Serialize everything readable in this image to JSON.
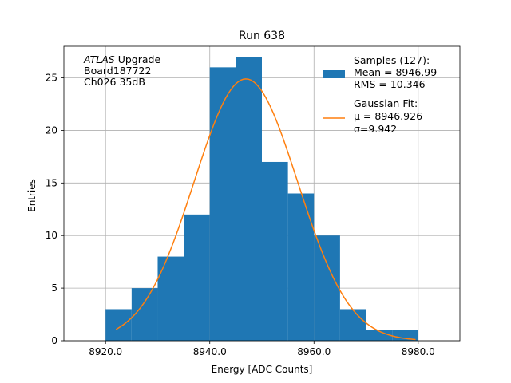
{
  "chart_data": {
    "type": "bar",
    "title": "Run 638",
    "xlabel": "Energy [ADC Counts]",
    "ylabel": "Entries",
    "xlim": [
      8912.0,
      8988.0
    ],
    "ylim": [
      0,
      28
    ],
    "x_ticks": [
      8920.0,
      8940.0,
      8960.0,
      8980.0
    ],
    "x_tick_labels": [
      "8920.0",
      "8940.0",
      "8960.0",
      "8980.0"
    ],
    "y_ticks": [
      0,
      5,
      10,
      15,
      20,
      25
    ],
    "y_tick_labels": [
      "0",
      "5",
      "10",
      "15",
      "20",
      "25"
    ],
    "grid": true,
    "histogram": {
      "bin_edges": [
        8920,
        8925,
        8930,
        8935,
        8940,
        8945,
        8950,
        8955,
        8960,
        8965,
        8970,
        8975,
        8980
      ],
      "counts": [
        3,
        5,
        8,
        12,
        26,
        27,
        17,
        14,
        10,
        3,
        1,
        1
      ],
      "color": "#1f77b4"
    },
    "gaussian_fit": {
      "mu": 8946.926,
      "sigma": 9.942,
      "amplitude": 24.9,
      "x_range": [
        8922.0,
        8979.5
      ],
      "color": "#ff7f0e"
    },
    "annotation_lines": [
      {
        "italic": "ATLAS",
        "rest": " Upgrade"
      },
      {
        "italic": "",
        "rest": " Board187722"
      },
      {
        "italic": "",
        "rest": " Ch026 35dB"
      }
    ],
    "legend": {
      "placement": "top-right",
      "entries": [
        {
          "lines": [
            "Samples (127):",
            " Mean = 8946.99",
            " RMS = 10.346"
          ],
          "marker": "patch",
          "color": "#1f77b4"
        },
        {
          "lines": [
            "Gaussian Fit:",
            " μ = 8946.926",
            " σ=9.942"
          ],
          "marker": "line",
          "color": "#ff7f0e"
        }
      ]
    }
  }
}
